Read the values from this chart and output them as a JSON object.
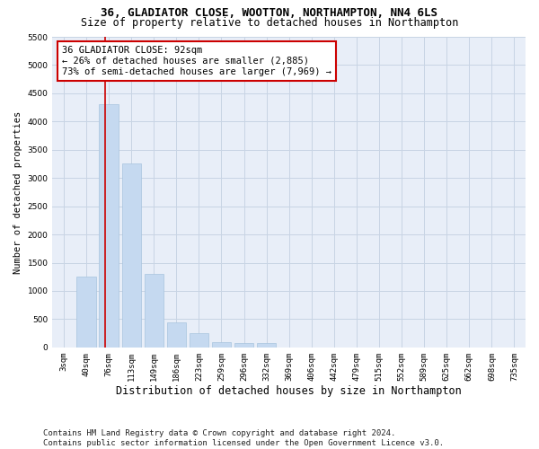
{
  "title": "36, GLADIATOR CLOSE, WOOTTON, NORTHAMPTON, NN4 6LS",
  "subtitle": "Size of property relative to detached houses in Northampton",
  "xlabel": "Distribution of detached houses by size in Northampton",
  "ylabel": "Number of detached properties",
  "categories": [
    "3sqm",
    "40sqm",
    "76sqm",
    "113sqm",
    "149sqm",
    "186sqm",
    "223sqm",
    "259sqm",
    "296sqm",
    "332sqm",
    "369sqm",
    "406sqm",
    "442sqm",
    "479sqm",
    "515sqm",
    "552sqm",
    "589sqm",
    "625sqm",
    "662sqm",
    "698sqm",
    "735sqm"
  ],
  "values": [
    0,
    1250,
    4300,
    3250,
    1300,
    450,
    250,
    100,
    75,
    75,
    0,
    0,
    0,
    0,
    0,
    0,
    0,
    0,
    0,
    0,
    0
  ],
  "bar_color": "#c5d9f0",
  "bar_edge_color": "#a8c4de",
  "grid_color": "#c8d4e4",
  "background_color": "#e8eef8",
  "annotation_text": "36 GLADIATOR CLOSE: 92sqm\n← 26% of detached houses are smaller (2,885)\n73% of semi-detached houses are larger (7,969) →",
  "annotation_box_color": "#ffffff",
  "annotation_box_edge_color": "#cc0000",
  "vline_x": 1.85,
  "vline_color": "#cc0000",
  "ylim": [
    0,
    5500
  ],
  "yticks": [
    0,
    500,
    1000,
    1500,
    2000,
    2500,
    3000,
    3500,
    4000,
    4500,
    5000,
    5500
  ],
  "footer_text": "Contains HM Land Registry data © Crown copyright and database right 2024.\nContains public sector information licensed under the Open Government Licence v3.0.",
  "title_fontsize": 9,
  "subtitle_fontsize": 8.5,
  "tick_fontsize": 6.5,
  "ylabel_fontsize": 7.5,
  "xlabel_fontsize": 8.5,
  "footer_fontsize": 6.5,
  "annotation_fontsize": 7.5
}
